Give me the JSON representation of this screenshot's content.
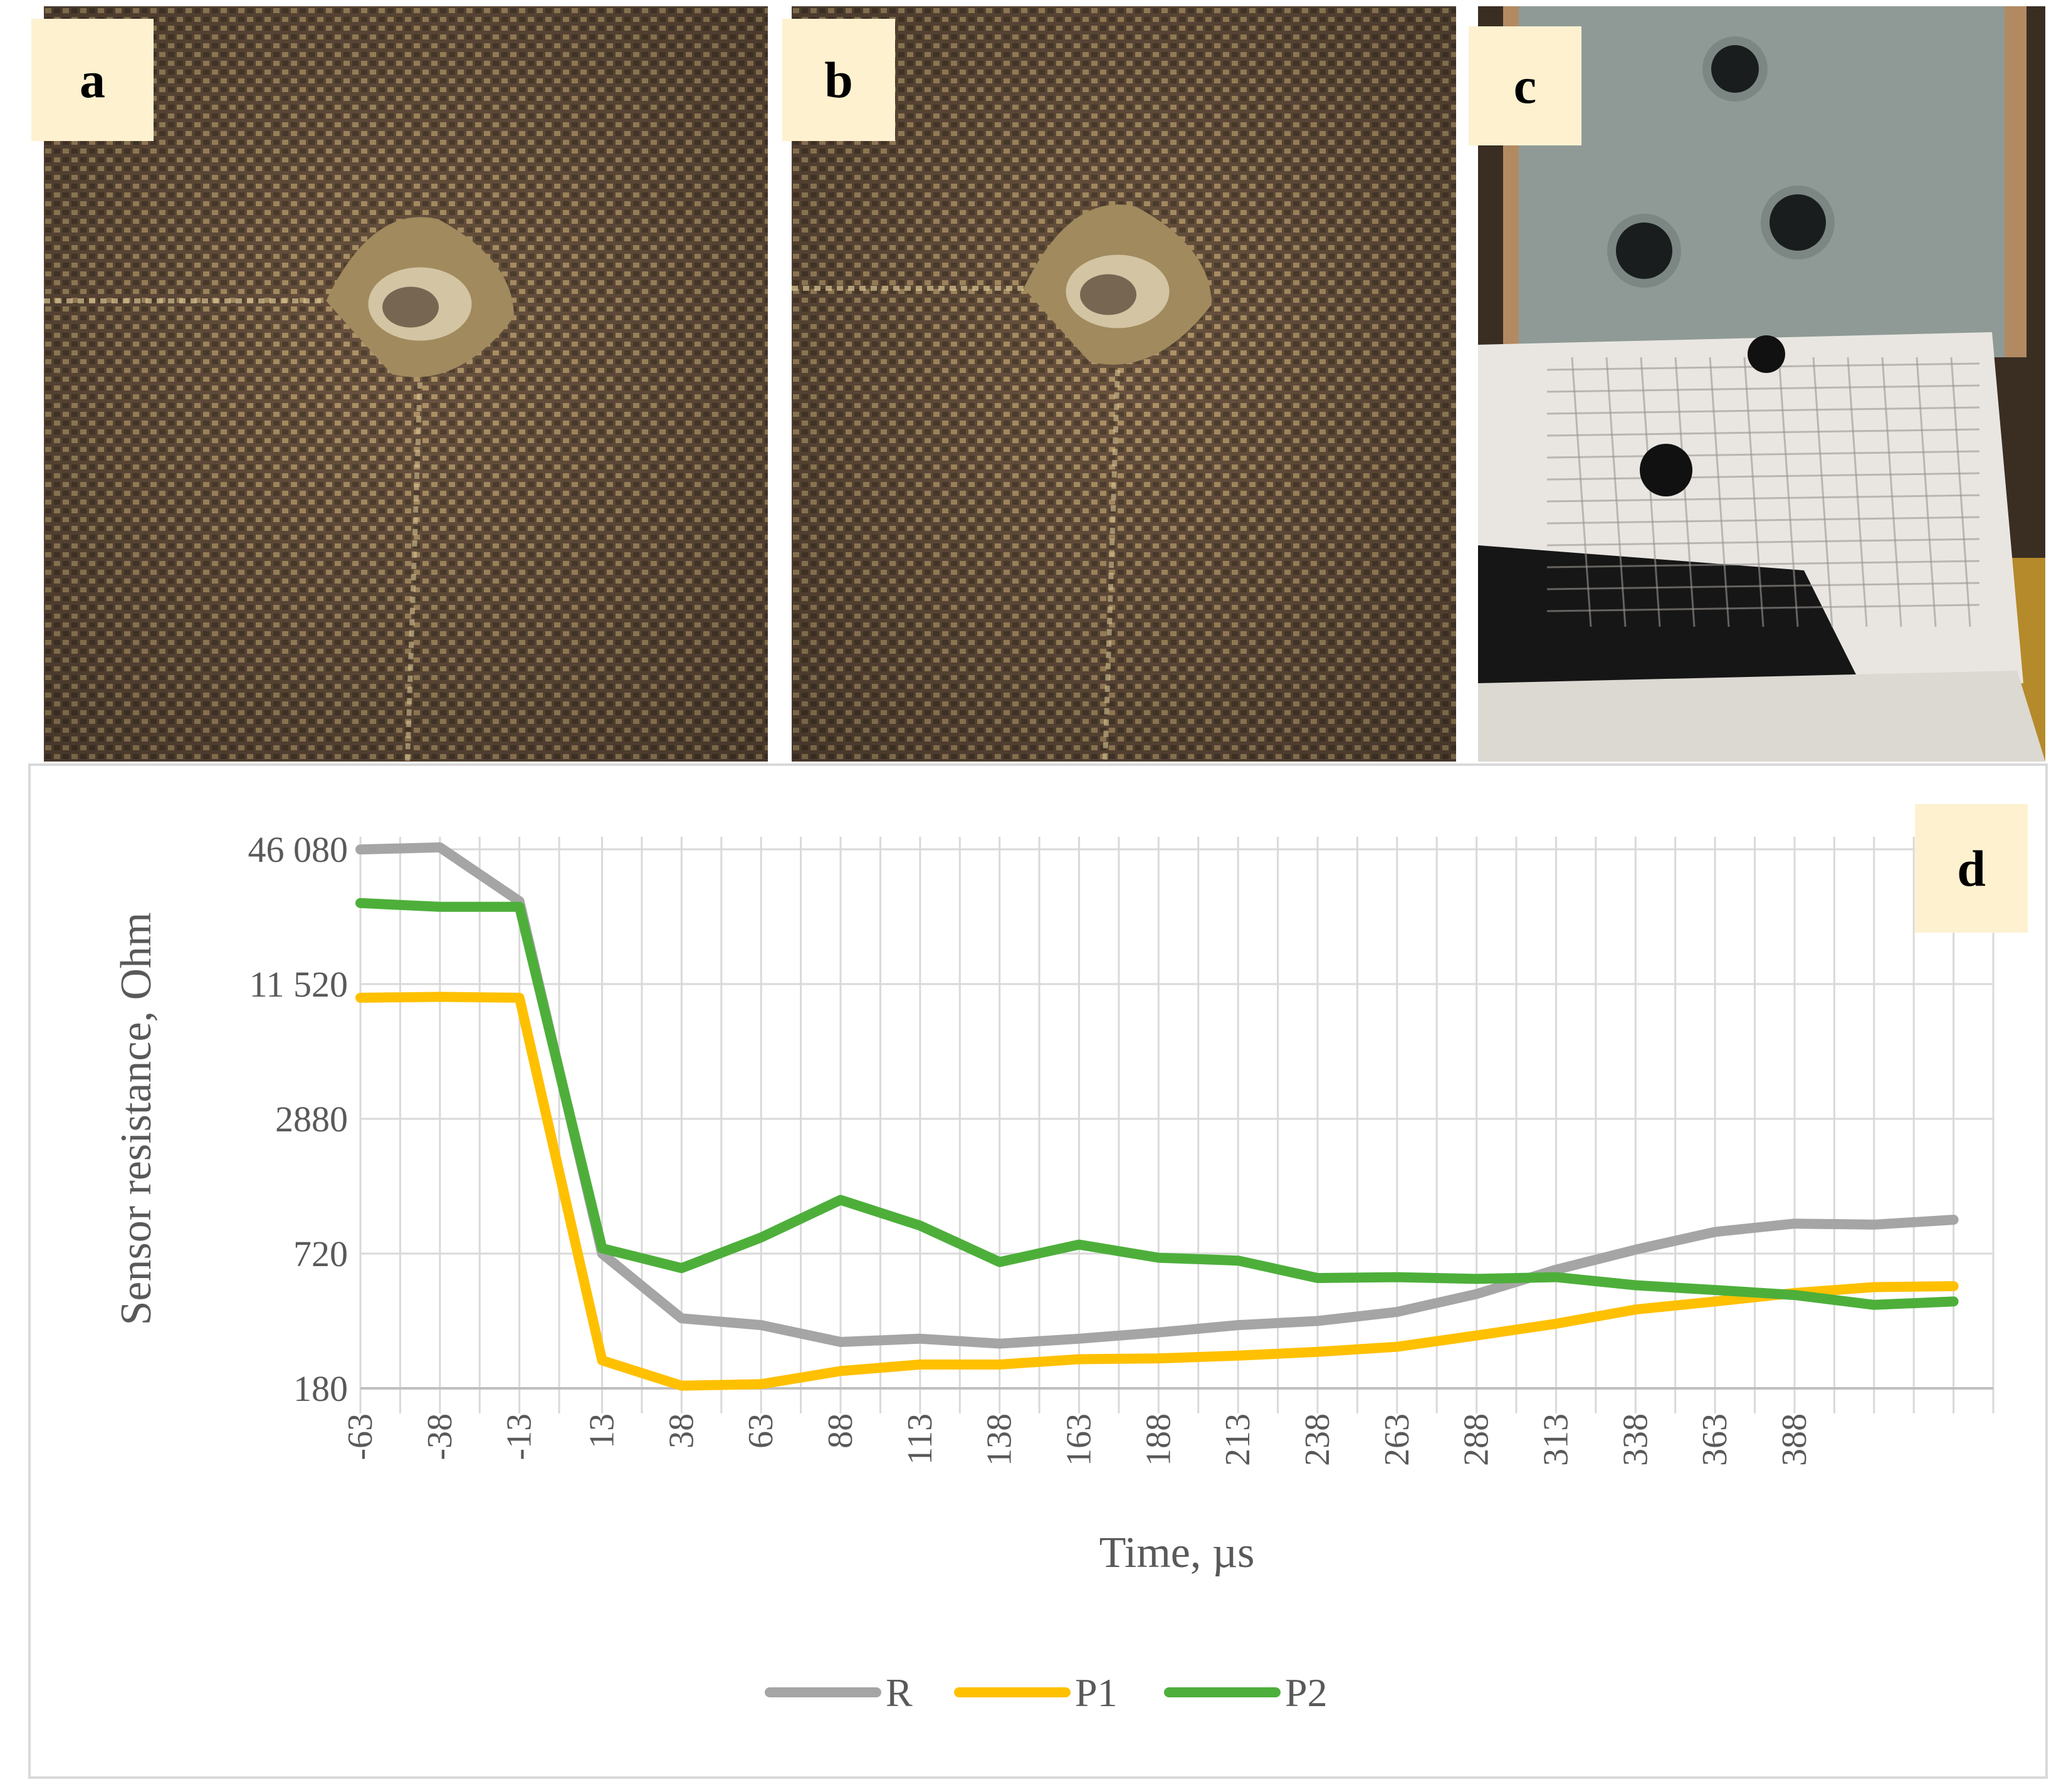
{
  "panels": {
    "a": {
      "label": "a"
    },
    "b": {
      "label": "b"
    },
    "c": {
      "label": "c"
    },
    "d": {
      "label": "d"
    }
  },
  "colors": {
    "fabric": "#6b5440",
    "thread": "#c9ad77",
    "background": "#ffffff",
    "label_bg": "#fdf1d0",
    "grid": "#d9d9d9",
    "text": "#595959"
  },
  "chart_data": {
    "type": "line",
    "title": "",
    "xlabel": "Time, µs",
    "ylabel": "Sensor resistance, Ohm",
    "yscale": "log",
    "yticks": [
      180,
      720,
      2880,
      11520,
      46080
    ],
    "ytick_labels": [
      "180",
      "720",
      "2880",
      "11 520",
      "46 080"
    ],
    "ylim": [
      180,
      46080
    ],
    "x": [
      -63,
      -50.5,
      -38,
      -25.5,
      -13,
      -0.5,
      13,
      25.5,
      38,
      50.5,
      63,
      75.5,
      88,
      100.5,
      113,
      125.5,
      138,
      150.5,
      163,
      175.5,
      188,
      200.5,
      213,
      225.5,
      238,
      250.5,
      263,
      275.5,
      288,
      300.5,
      313,
      325.5,
      338,
      350.5,
      363,
      375.5,
      388,
      400.5,
      413,
      425.5,
      438,
      450.5
    ],
    "xticks": [
      -63,
      -38,
      -13,
      13,
      38,
      63,
      88,
      113,
      138,
      163,
      188,
      213,
      238,
      263,
      288,
      313,
      338,
      363,
      388
    ],
    "series": [
      {
        "name": "R",
        "color": "#a5a5a5",
        "points": [
          [
            -63,
            46000
          ],
          [
            -38,
            47000
          ],
          [
            -13,
            27000
          ],
          [
            13,
            720
          ],
          [
            38,
            370
          ],
          [
            63,
            345
          ],
          [
            88,
            290
          ],
          [
            113,
            300
          ],
          [
            138,
            285
          ],
          [
            163,
            300
          ],
          [
            188,
            320
          ],
          [
            213,
            345
          ],
          [
            238,
            360
          ],
          [
            263,
            395
          ],
          [
            288,
            475
          ],
          [
            313,
            610
          ],
          [
            338,
            750
          ],
          [
            363,
            900
          ],
          [
            388,
            980
          ],
          [
            413,
            970
          ],
          [
            438,
            1020
          ]
        ]
      },
      {
        "name": "P1",
        "color": "#ffc000",
        "points": [
          [
            -63,
            10000
          ],
          [
            -38,
            10100
          ],
          [
            -13,
            10000
          ],
          [
            13,
            240
          ],
          [
            38,
            185
          ],
          [
            63,
            188
          ],
          [
            88,
            215
          ],
          [
            113,
            230
          ],
          [
            138,
            230
          ],
          [
            163,
            243
          ],
          [
            188,
            245
          ],
          [
            213,
            252
          ],
          [
            238,
            262
          ],
          [
            263,
            276
          ],
          [
            288,
            310
          ],
          [
            313,
            350
          ],
          [
            338,
            405
          ],
          [
            363,
            440
          ],
          [
            388,
            480
          ],
          [
            413,
            510
          ],
          [
            438,
            515
          ]
        ]
      },
      {
        "name": "P2",
        "color": "#4daf3a",
        "points": [
          [
            -63,
            26500
          ],
          [
            -38,
            25500
          ],
          [
            -13,
            25500
          ],
          [
            13,
            760
          ],
          [
            38,
            620
          ],
          [
            63,
            850
          ],
          [
            88,
            1250
          ],
          [
            113,
            960
          ],
          [
            138,
            660
          ],
          [
            163,
            790
          ],
          [
            188,
            690
          ],
          [
            213,
            670
          ],
          [
            238,
            560
          ],
          [
            263,
            565
          ],
          [
            288,
            555
          ],
          [
            313,
            565
          ],
          [
            338,
            520
          ],
          [
            363,
            495
          ],
          [
            388,
            470
          ],
          [
            413,
            425
          ],
          [
            438,
            440
          ]
        ]
      }
    ],
    "legend": "bottom",
    "grid": true
  }
}
